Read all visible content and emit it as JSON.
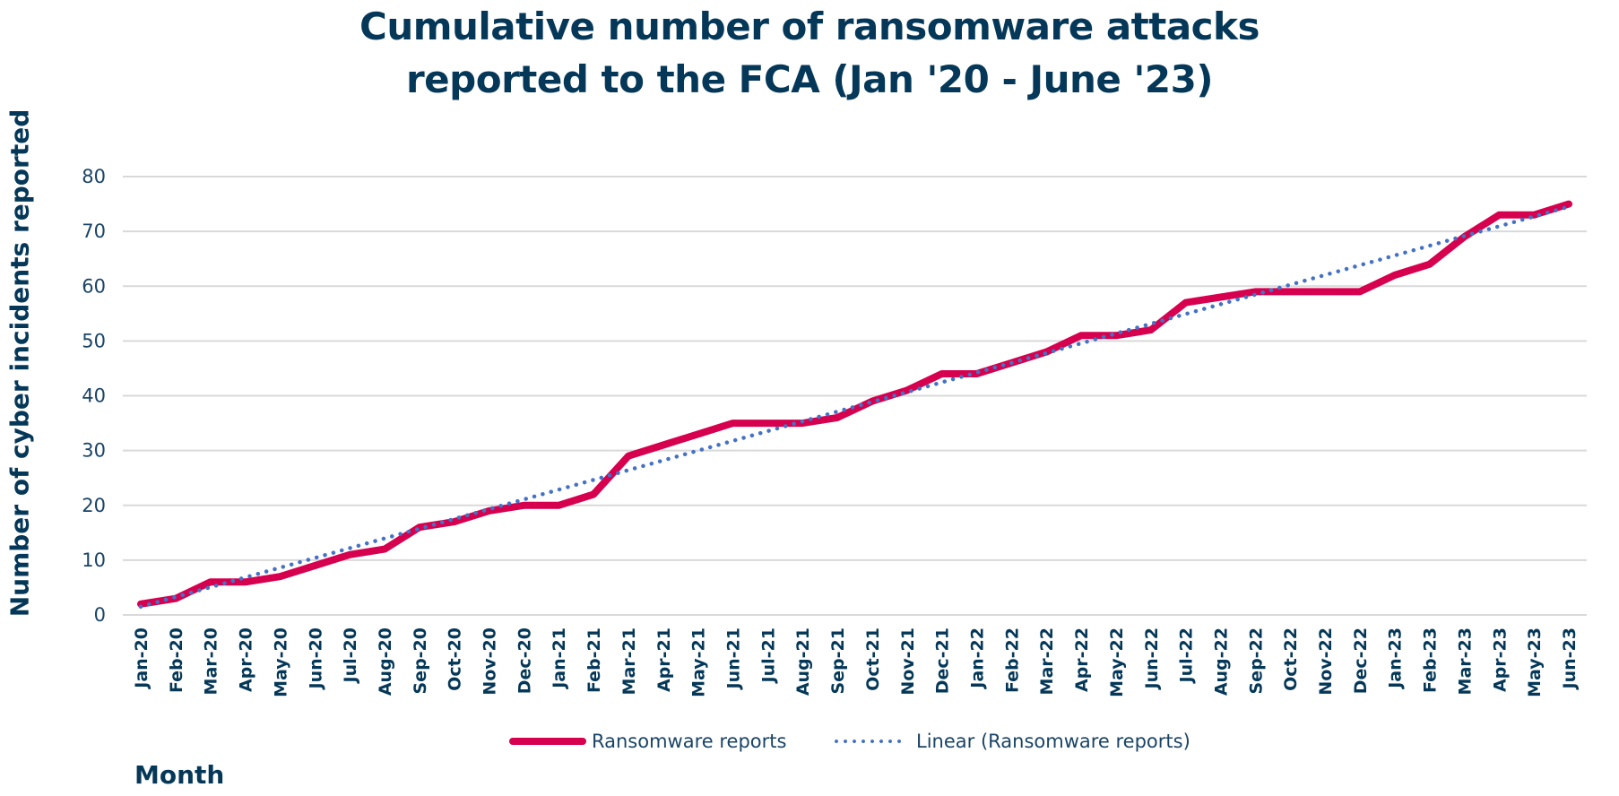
{
  "title": {
    "line1": "Cumulative number of ransomware attacks",
    "line2": "reported to the FCA (Jan '20 - June '23)"
  },
  "axes": {
    "ylabel": "Number of cyber incidents reported",
    "xlabel": "Month"
  },
  "legend": {
    "series_label": "Ransomware reports",
    "trend_label": "Linear (Ransomware reports)"
  },
  "colors": {
    "series": "#d6004f",
    "trend": "#4472c4",
    "text": "#053858",
    "grid": "#d9d9d9"
  },
  "chart_data": {
    "type": "line",
    "title": "Cumulative number of ransomware attacks reported to the FCA (Jan '20 - June '23)",
    "xlabel": "Month",
    "ylabel": "Number of cyber incidents reported",
    "ylim": [
      0,
      80
    ],
    "yticks": [
      0,
      10,
      20,
      30,
      40,
      50,
      60,
      70,
      80
    ],
    "grid": true,
    "legend_position": "bottom",
    "categories": [
      "Jan-20",
      "Feb-20",
      "Mar-20",
      "Apr-20",
      "May-20",
      "Jun-20",
      "Jul-20",
      "Aug-20",
      "Sep-20",
      "Oct-20",
      "Nov-20",
      "Dec-20",
      "Jan-21",
      "Feb-21",
      "Mar-21",
      "Apr-21",
      "May-21",
      "Jun-21",
      "Jul-21",
      "Aug-21",
      "Sep-21",
      "Oct-21",
      "Nov-21",
      "Dec-21",
      "Jan-22",
      "Feb-22",
      "Mar-22",
      "Apr-22",
      "May-22",
      "Jun-22",
      "Jul-22",
      "Aug-22",
      "Sep-22",
      "Oct-22",
      "Nov-22",
      "Dec-22",
      "Jan-23",
      "Feb-23",
      "Mar-23",
      "Apr-23",
      "May-23",
      "Jun-23"
    ],
    "series": [
      {
        "name": "Ransomware reports",
        "style": "solid",
        "values": [
          2,
          3,
          6,
          6,
          7,
          9,
          11,
          12,
          16,
          17,
          19,
          20,
          20,
          22,
          29,
          31,
          33,
          35,
          35,
          35,
          36,
          39,
          41,
          44,
          44,
          46,
          48,
          51,
          51,
          52,
          57,
          58,
          59,
          59,
          59,
          59,
          62,
          64,
          69,
          73,
          73,
          75
        ]
      },
      {
        "name": "Linear (Ransomware reports)",
        "style": "dotted",
        "trendline": "linear",
        "start": 1.5,
        "end": 74.5
      }
    ]
  }
}
